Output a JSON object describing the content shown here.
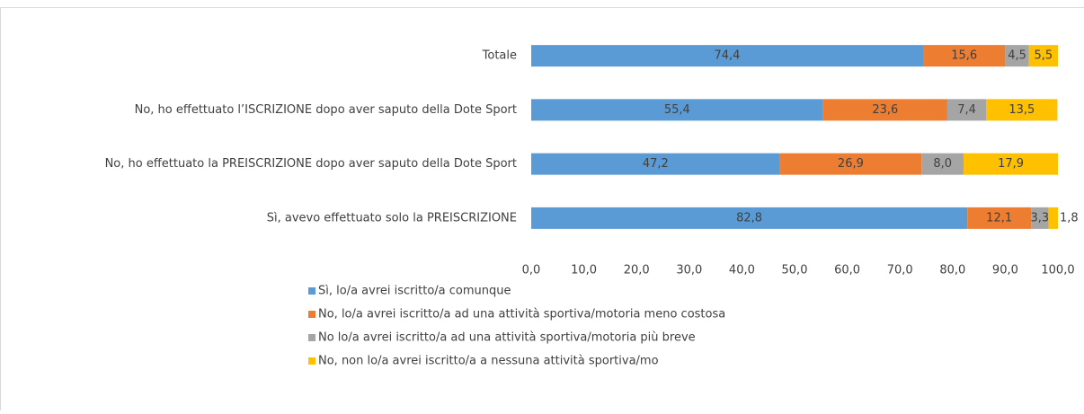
{
  "chart_data": {
    "type": "bar",
    "orientation": "horizontal",
    "stacked": true,
    "grid": false,
    "legend": "bottom",
    "categories": [
      "Totale",
      "No, ho effettuato l’ISCRIZIONE dopo aver saputo della Dote Sport",
      "No, ho effettuato la PREISCRIZIONE dopo aver saputo della Dote Sport",
      "Sì, avevo effettuato solo la PREISCRIZIONE"
    ],
    "series": [
      {
        "name": "Sì, lo/a avrei iscritto/a comunque",
        "color": "#5b9bd5",
        "values": [
          74.4,
          55.4,
          47.2,
          82.8
        ],
        "value_labels": [
          "74,4",
          "55,4",
          "47,2",
          "82,8"
        ]
      },
      {
        "name": "No, lo/a avrei iscritto/a ad una attività sportiva/motoria meno costosa",
        "color": "#ed7d31",
        "values": [
          15.6,
          23.6,
          26.9,
          12.1
        ],
        "value_labels": [
          "15,6",
          "23,6",
          "26,9",
          "12,1"
        ]
      },
      {
        "name": "No lo/a avrei iscritto/a ad una attività sportiva/motoria più breve",
        "color": "#a5a5a5",
        "values": [
          4.5,
          7.4,
          8.0,
          3.3
        ],
        "value_labels": [
          "4,5",
          "7,4",
          "8,0",
          "3,3"
        ]
      },
      {
        "name": "No, non lo/a avrei iscritto/a a nessuna attività sportiva/mo",
        "color": "#ffc000",
        "values": [
          5.5,
          13.5,
          17.9,
          1.8
        ],
        "value_labels": [
          "5,5",
          "13,5",
          "17,9",
          "1,8"
        ]
      }
    ],
    "xlim": [
      0,
      100
    ],
    "xticks": [
      {
        "value": 0,
        "label": "0,0"
      },
      {
        "value": 10,
        "label": "10,0"
      },
      {
        "value": 20,
        "label": "20,0"
      },
      {
        "value": 30,
        "label": "30,0"
      },
      {
        "value": 40,
        "label": "40,0"
      },
      {
        "value": 50,
        "label": "50,0"
      },
      {
        "value": 60,
        "label": "60,0"
      },
      {
        "value": 70,
        "label": "70,0"
      },
      {
        "value": 80,
        "label": "80,0"
      },
      {
        "value": 90,
        "label": "90,0"
      },
      {
        "value": 100,
        "label": "100,0"
      }
    ]
  }
}
